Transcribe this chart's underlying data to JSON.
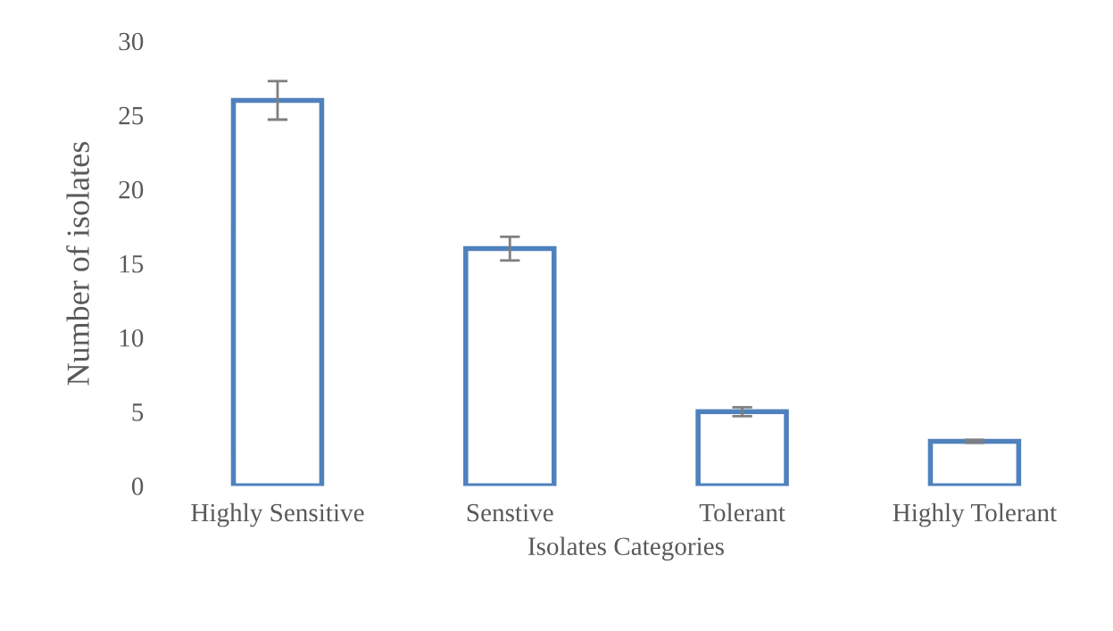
{
  "chart_data": {
    "type": "bar",
    "xlabel": "Isolates Categories",
    "ylabel": "Number of isolates",
    "categories": [
      "Highly Sensitive",
      "Senstive",
      "Tolerant",
      "Highly Tolerant"
    ],
    "values": [
      26,
      16,
      5,
      3
    ],
    "errors": [
      1.3,
      0.8,
      0.3,
      0.1
    ],
    "color": "#4f81bd",
    "ylim": [
      0,
      30
    ],
    "yticks": [
      0,
      5,
      10,
      15,
      20,
      25,
      30
    ],
    "grid": false
  }
}
